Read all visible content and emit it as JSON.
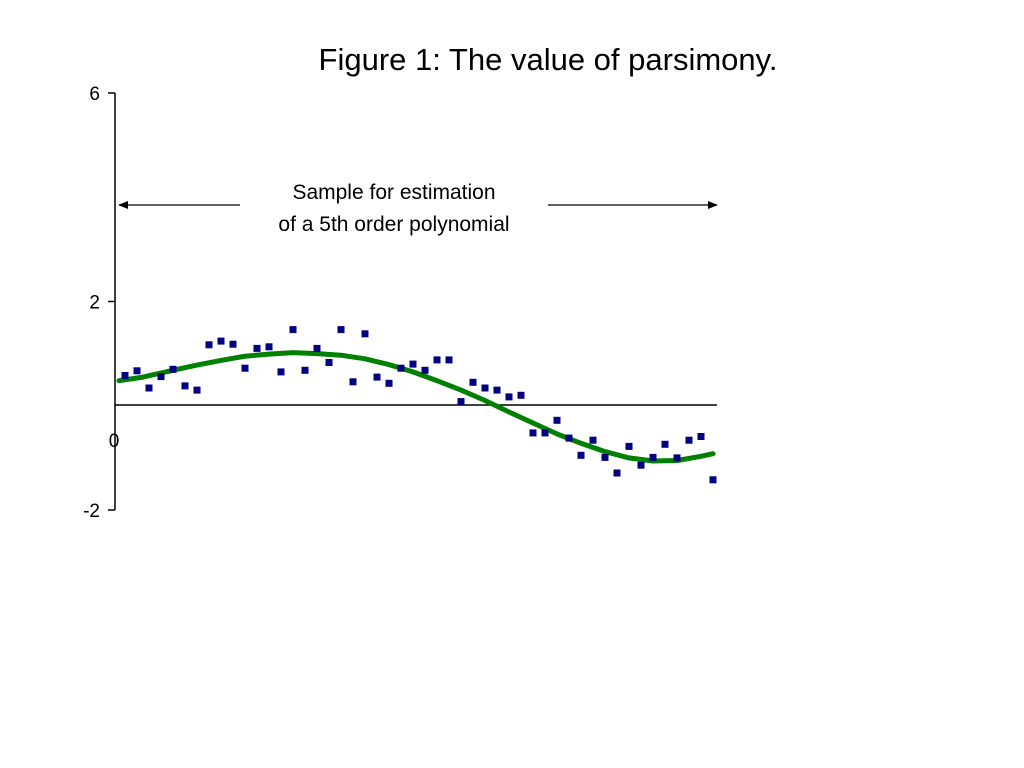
{
  "chart_data": {
    "type": "scatter",
    "title": "Figure 1: The value of parsimony.",
    "ylim": [
      -2,
      6
    ],
    "yticks": [
      6,
      2,
      -2
    ],
    "yticks_labels": [
      "6",
      "2",
      "-2"
    ],
    "zero_label": "0",
    "grid": false,
    "annotation": {
      "lines": [
        "Sample for estimation",
        "of a 5th order polynomial"
      ],
      "arrow": "double-headed horizontal, spanning the sample"
    },
    "series": [
      {
        "kind": "points",
        "color": "#000080",
        "x": [
          1,
          2,
          3,
          4,
          5,
          6,
          7,
          8,
          9,
          10,
          11,
          12,
          13,
          14,
          15,
          16,
          17,
          18,
          19,
          20,
          21,
          22,
          23,
          24,
          25,
          26,
          27,
          28,
          29,
          30,
          31,
          32,
          33,
          34,
          35,
          36,
          37,
          38,
          39,
          40,
          41,
          42,
          43,
          44,
          45,
          46,
          47,
          48,
          49,
          50
        ],
        "y": [
          0.58,
          0.67,
          0.34,
          0.56,
          0.7,
          0.38,
          0.3,
          1.17,
          1.24,
          1.18,
          0.72,
          1.1,
          1.13,
          0.65,
          1.46,
          0.68,
          1.1,
          0.83,
          1.46,
          0.46,
          1.38,
          0.55,
          0.43,
          0.72,
          0.8,
          0.68,
          0.88,
          0.88,
          0.08,
          0.45,
          0.34,
          0.3,
          0.17,
          0.2,
          -0.52,
          -0.52,
          -0.28,
          -0.62,
          -0.95,
          -0.66,
          -0.99,
          -1.29,
          -0.78,
          -1.14,
          -0.99,
          -0.74,
          -1.0,
          -0.66,
          -0.59,
          -1.42
        ]
      },
      {
        "kind": "fitted 5th order polynomial",
        "color": "#008000",
        "x": [
          0.5,
          2.5,
          5,
          7,
          9,
          11,
          13,
          15,
          17,
          19,
          21,
          23,
          25,
          27,
          29,
          31,
          33,
          35,
          37,
          39,
          41,
          43,
          45,
          47,
          49,
          50
        ],
        "y": [
          0.48,
          0.55,
          0.68,
          0.78,
          0.87,
          0.95,
          0.99,
          1.02,
          1.0,
          0.97,
          0.9,
          0.79,
          0.65,
          0.48,
          0.3,
          0.1,
          -0.12,
          -0.33,
          -0.54,
          -0.72,
          -0.88,
          -1.0,
          -1.06,
          -1.05,
          -0.97,
          -0.92
        ]
      }
    ]
  }
}
